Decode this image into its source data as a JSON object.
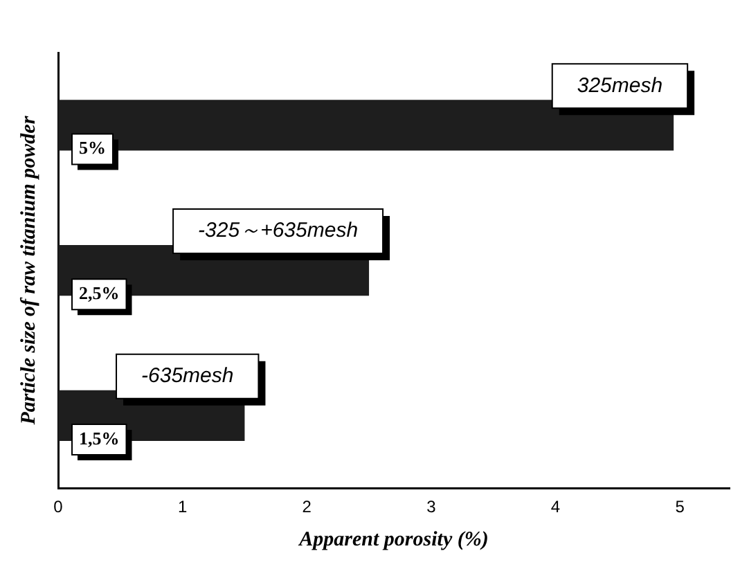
{
  "chart_data": {
    "type": "bar",
    "orientation": "horizontal",
    "xlabel": "Apparent porosity (%)",
    "ylabel": "Particle size of raw titanium powder",
    "categories": [
      "325mesh",
      "-325～+635mesh",
      "-635mesh"
    ],
    "values": [
      4.95,
      2.5,
      1.5
    ],
    "value_labels": [
      "5%",
      "2,5%",
      "1,5%"
    ],
    "color": "#1e1e1e",
    "xlim": [
      0,
      5.4
    ],
    "xticks": [
      0,
      1,
      2,
      3,
      4,
      5
    ],
    "tick_labels": "x",
    "grid": false,
    "legend": false
  }
}
